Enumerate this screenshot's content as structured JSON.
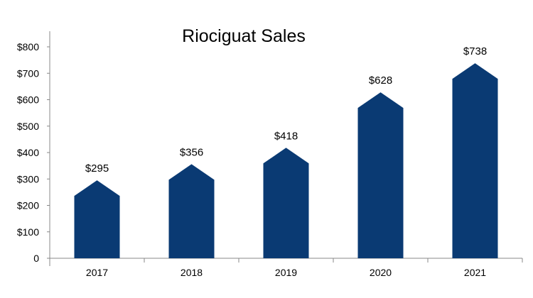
{
  "chart_data": {
    "type": "bar",
    "title": "Riociguat Sales",
    "categories": [
      "2017",
      "2018",
      "2019",
      "2020",
      "2021"
    ],
    "values": [
      295,
      356,
      418,
      628,
      738
    ],
    "data_labels": [
      "$295",
      "$356",
      "$418",
      "$628",
      "$738"
    ],
    "y_ticks": [
      0,
      100,
      200,
      300,
      400,
      500,
      600,
      700,
      800
    ],
    "y_tick_labels": [
      "0",
      "$100",
      "$200",
      "$300",
      "$400",
      "$500",
      "$600",
      "$700",
      "$800"
    ],
    "ylim": [
      0,
      800
    ],
    "xlabel": "",
    "ylabel": "",
    "grid": false,
    "legend": "none",
    "bar_color": "#0a3a73"
  }
}
